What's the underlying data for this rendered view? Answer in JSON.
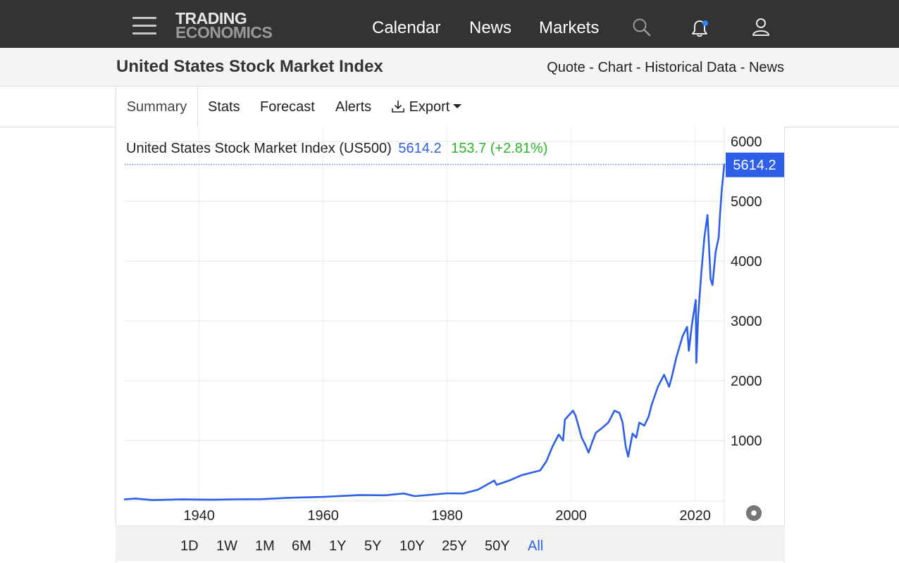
{
  "nav": {
    "logo_line1": "TRADING",
    "logo_line2": "ECONOMICS",
    "links": [
      "Calendar",
      "News",
      "Markets"
    ],
    "icons": [
      "menu-icon",
      "search-icon",
      "bell-icon",
      "user-icon"
    ]
  },
  "title_bar": {
    "title": "United States Stock Market Index",
    "links": [
      "Quote",
      "Chart",
      "Historical Data",
      "News"
    ],
    "separator": " - "
  },
  "tabs": {
    "summary": "Summary",
    "stats": "Stats",
    "forecast": "Forecast",
    "alerts": "Alerts",
    "export": "Export"
  },
  "chart_header": {
    "name": "United States Stock Market Index (US500)",
    "price": "5614.2",
    "change": "153.7 (+2.81%)"
  },
  "ranges": [
    "1D",
    "1W",
    "1M",
    "6M",
    "1Y",
    "5Y",
    "10Y",
    "25Y",
    "50Y",
    "All"
  ],
  "selected_range": "All",
  "colors": {
    "line": "#2e5fe8",
    "price": "#2e5fe8",
    "change": "#2bb52b",
    "topbar": "#333333"
  },
  "chart_data": {
    "type": "line",
    "title": "United States Stock Market Index (US500)",
    "x_ticks": [
      "1940",
      "1960",
      "1980",
      "2000",
      "2020"
    ],
    "y_ticks": [
      "1000",
      "2000",
      "3000",
      "4000",
      "5000",
      "6000"
    ],
    "xlim": [
      1928,
      2024.7
    ],
    "ylim": [
      0,
      6000
    ],
    "y_axis_side": "right",
    "grid": true,
    "last_value_label": "5614.2",
    "series": [
      {
        "x": [
          1928,
          1929.7,
          1932.5,
          1937,
          1942,
          1946,
          1950,
          1955,
          1960,
          1966,
          1970,
          1973,
          1974.8,
          1980,
          1982.6,
          1985,
          1987.6,
          1988,
          1990,
          1992,
          1995,
          1996,
          1997,
          1998,
          1998.7,
          1999,
          2000.3,
          2000.7,
          2001.3,
          2001.7,
          2002.2,
          2002.8,
          2003.5,
          2004,
          2005,
          2006,
          2007,
          2007.8,
          2008.3,
          2008.8,
          2009.2,
          2009.9,
          2010.5,
          2011,
          2011.8,
          2012.5,
          2013,
          2014,
          2015,
          2015.8,
          2016.2,
          2017,
          2018,
          2018.7,
          2018.98,
          2019.5,
          2020.1,
          2020.2,
          2020.5,
          2021,
          2021.5,
          2021.99,
          2022.5,
          2022.8,
          2023.3,
          2023.8,
          2024,
          2024.3,
          2024.7
        ],
        "y": [
          17,
          31,
          5,
          16,
          10,
          18,
          20,
          45,
          58,
          90,
          85,
          115,
          70,
          118,
          115,
          180,
          330,
          260,
          330,
          420,
          500,
          650,
          900,
          1100,
          1000,
          1350,
          1500,
          1420,
          1200,
          1050,
          950,
          800,
          1000,
          1130,
          1210,
          1300,
          1500,
          1460,
          1300,
          900,
          730,
          1115,
          1050,
          1300,
          1250,
          1400,
          1600,
          1900,
          2100,
          1900,
          2050,
          2400,
          2750,
          2900,
          2500,
          2950,
          3350,
          2300,
          3100,
          3800,
          4400,
          4770,
          3700,
          3600,
          4150,
          4400,
          4750,
          5200,
          5614.2
        ]
      }
    ]
  }
}
